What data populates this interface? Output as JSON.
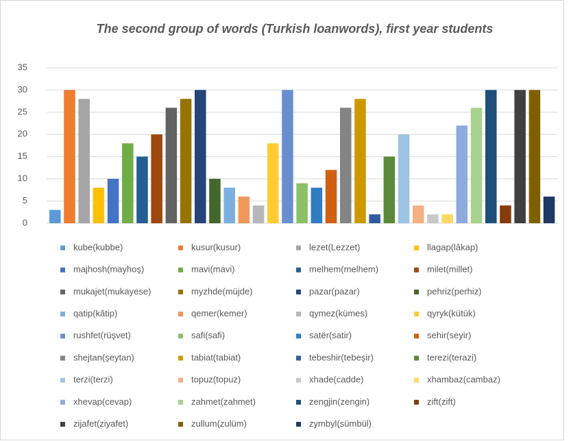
{
  "chart_data": {
    "type": "bar",
    "title": "The second group of words (Turkish loanwords), first year students",
    "categories": [
      null
    ],
    "ylim": [
      0,
      35
    ],
    "yticks": [
      0,
      5,
      10,
      15,
      20,
      25,
      30,
      35
    ],
    "grid": true,
    "legend": "bottom",
    "series": [
      {
        "name": "kube(kubbe)",
        "color": "#5b9bd5",
        "values": [
          3
        ]
      },
      {
        "name": "kusur(kusur)",
        "color": "#ed7d31",
        "values": [
          30
        ]
      },
      {
        "name": "lezet(Lezzet)",
        "color": "#a5a5a5",
        "values": [
          28
        ]
      },
      {
        "name": "llagap(lâkap)",
        "color": "#ffc000",
        "values": [
          8
        ]
      },
      {
        "name": "majhosh(mayhoş)",
        "color": "#4472c4",
        "values": [
          10
        ]
      },
      {
        "name": "mavi(mavi)",
        "color": "#70ad47",
        "values": [
          18
        ]
      },
      {
        "name": "melhem(melhem)",
        "color": "#255e91",
        "values": [
          15
        ]
      },
      {
        "name": "milet(millet)",
        "color": "#9e480e",
        "values": [
          20
        ]
      },
      {
        "name": "mukajet(mukayese)",
        "color": "#636363",
        "values": [
          26
        ]
      },
      {
        "name": "myzhde(müjde)",
        "color": "#997300",
        "values": [
          28
        ]
      },
      {
        "name": "pazar(pazar)",
        "color": "#264478",
        "values": [
          30
        ]
      },
      {
        "name": "pehriz(perhiz)",
        "color": "#43682b",
        "values": [
          10
        ]
      },
      {
        "name": "qatip(kâtip)",
        "color": "#7cafdd",
        "values": [
          8
        ]
      },
      {
        "name": "qemer(kemer)",
        "color": "#f1975a",
        "values": [
          6
        ]
      },
      {
        "name": "qymez(kümes)",
        "color": "#b7b7b7",
        "values": [
          4
        ]
      },
      {
        "name": "qyryk(kütük)",
        "color": "#ffcd33",
        "values": [
          18
        ]
      },
      {
        "name": "rushfet(rüşvet)",
        "color": "#698ed0",
        "values": [
          30
        ]
      },
      {
        "name": "safi(safi)",
        "color": "#8cc168",
        "values": [
          9
        ]
      },
      {
        "name": "satër(satir)",
        "color": "#327dc2",
        "values": [
          8
        ]
      },
      {
        "name": "sehir(seyir)",
        "color": "#d26012",
        "values": [
          12
        ]
      },
      {
        "name": "shejtan(şeytan)",
        "color": "#848484",
        "values": [
          26
        ]
      },
      {
        "name": "tabiat(tabiat)",
        "color": "#cc9a00",
        "values": [
          28
        ]
      },
      {
        "name": "tebeshir(tebeşir)",
        "color": "#335aa1",
        "values": [
          2
        ]
      },
      {
        "name": "terezi(terazi)",
        "color": "#5a8a39",
        "values": [
          15
        ]
      },
      {
        "name": "terzi(terzi)",
        "color": "#9dc3e6",
        "values": [
          20
        ]
      },
      {
        "name": "topuz(topuz)",
        "color": "#f4b183",
        "values": [
          4
        ]
      },
      {
        "name": "xhade(cadde)",
        "color": "#c9c9c9",
        "values": [
          2
        ]
      },
      {
        "name": "xhambaz(cambaz)",
        "color": "#ffd966",
        "values": [
          2
        ]
      },
      {
        "name": "xhevap(cevap)",
        "color": "#8faadc",
        "values": [
          22
        ]
      },
      {
        "name": "zahmet(zahmet)",
        "color": "#a9d18e",
        "values": [
          26
        ]
      },
      {
        "name": "zengjin(zengin)",
        "color": "#1f4e79",
        "values": [
          30
        ]
      },
      {
        "name": "zift(zift)",
        "color": "#843c0c",
        "values": [
          4
        ]
      },
      {
        "name": "zijafet(ziyafet)",
        "color": "#404040",
        "values": [
          30
        ]
      },
      {
        "name": "zullum(zulüm)",
        "color": "#7f6000",
        "values": [
          30
        ]
      },
      {
        "name": "zymbyl(sümbül)",
        "color": "#203864",
        "values": [
          6
        ]
      }
    ]
  }
}
